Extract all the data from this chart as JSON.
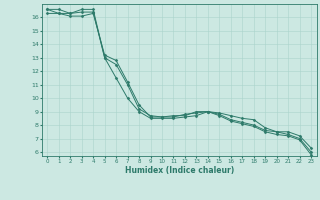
{
  "xlabel": "Humidex (Indice chaleur)",
  "ylabel": "",
  "bg_color": "#cce8e2",
  "grid_color": "#aad4cc",
  "line_color": "#2d7a6a",
  "xlim": [
    -0.5,
    23.5
  ],
  "ylim": [
    5.7,
    17.0
  ],
  "xticks": [
    0,
    1,
    2,
    3,
    4,
    5,
    6,
    7,
    8,
    9,
    10,
    11,
    12,
    13,
    14,
    15,
    16,
    17,
    18,
    19,
    20,
    21,
    22,
    23
  ],
  "yticks": [
    6,
    7,
    8,
    9,
    10,
    11,
    12,
    13,
    14,
    15,
    16
  ],
  "series": [
    [
      16.6,
      16.6,
      16.3,
      16.6,
      16.6,
      13.0,
      11.5,
      10.0,
      9.0,
      8.5,
      8.5,
      8.5,
      8.6,
      8.7,
      9.0,
      8.9,
      8.7,
      8.5,
      8.4,
      7.8,
      7.5,
      7.5,
      7.2,
      6.3
    ],
    [
      16.6,
      16.3,
      16.3,
      16.4,
      16.4,
      13.0,
      12.5,
      11.0,
      9.2,
      8.7,
      8.6,
      8.7,
      8.7,
      9.0,
      9.0,
      8.8,
      8.4,
      8.2,
      8.0,
      7.6,
      7.5,
      7.3,
      7.0,
      6.0
    ],
    [
      16.3,
      16.3,
      16.1,
      16.1,
      16.3,
      13.2,
      12.8,
      11.2,
      9.5,
      8.6,
      8.6,
      8.6,
      8.8,
      8.9,
      9.0,
      8.7,
      8.3,
      8.1,
      7.9,
      7.5,
      7.3,
      7.2,
      6.9,
      5.8
    ]
  ]
}
